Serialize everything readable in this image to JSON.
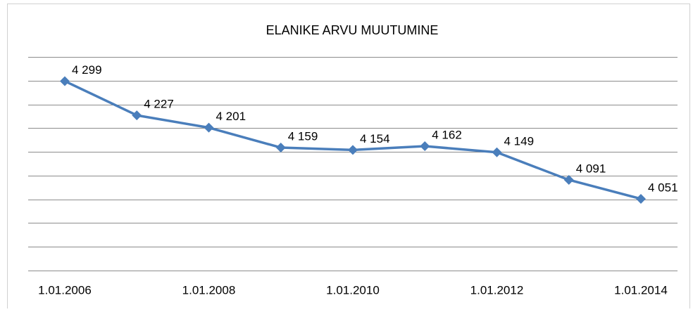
{
  "chart_data": {
    "type": "line",
    "title": "ELANIKE ARVU MUUTUMINE",
    "categories": [
      "1.01.2006",
      null,
      "1.01.2008",
      null,
      "1.01.2010",
      null,
      "1.01.2012",
      null,
      "1.01.2014"
    ],
    "series": [
      {
        "color": "#4a7ebb",
        "values": [
          4299,
          4227,
          4201,
          4159,
          4154,
          4162,
          4149,
          4091,
          4051
        ],
        "value_labels": [
          "4 299",
          "4 227",
          "4 201",
          "4 159",
          "4 154",
          "4 162",
          "4 149",
          "4 091",
          "4 051"
        ]
      }
    ],
    "ylim": [
      3900,
      4350
    ],
    "yticks": [
      3900,
      3950,
      4000,
      4050,
      4100,
      4150,
      4200,
      4250,
      4300,
      4350
    ],
    "grid": true
  }
}
